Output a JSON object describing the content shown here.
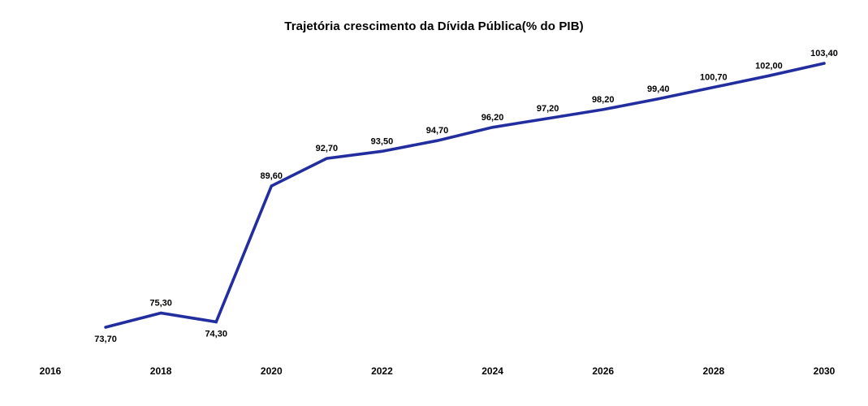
{
  "page": {
    "background": "#ffffff"
  },
  "chart_data": {
    "type": "line",
    "title": "Trajetória crescimento da Dívida Pública(% do PIB)",
    "xlabel": "",
    "ylabel": "",
    "x": [
      2017,
      2018,
      2019,
      2020,
      2021,
      2022,
      2023,
      2024,
      2025,
      2026,
      2027,
      2028,
      2029,
      2030
    ],
    "values": [
      73.7,
      75.3,
      74.3,
      89.6,
      92.7,
      93.5,
      94.7,
      96.2,
      97.2,
      98.2,
      99.4,
      100.7,
      102.0,
      103.4
    ],
    "point_labels": [
      "73,70",
      "75,30",
      "74,30",
      "89,60",
      "92,70",
      "93,50",
      "94,70",
      "96,20",
      "97,20",
      "98,20",
      "99,40",
      "100,70",
      "102,00",
      "103,40"
    ],
    "label_positions": [
      "below",
      "above",
      "below",
      "above",
      "above",
      "above",
      "above",
      "above",
      "above",
      "above",
      "above",
      "above",
      "above",
      "above"
    ],
    "x_tick_labels": [
      "2016",
      "2018",
      "2020",
      "2022",
      "2024",
      "2026",
      "2028",
      "2030"
    ],
    "x_tick_values": [
      2016,
      2018,
      2020,
      2022,
      2024,
      2026,
      2028,
      2030
    ],
    "x_range": [
      2016,
      2030
    ],
    "y_anchor_values": [
      73.7,
      103.4
    ],
    "line_color": "#222DA0",
    "text_color": "#000000",
    "grid": false,
    "legend": false,
    "y_axis_visible": false,
    "x_axis_line_visible": false
  }
}
